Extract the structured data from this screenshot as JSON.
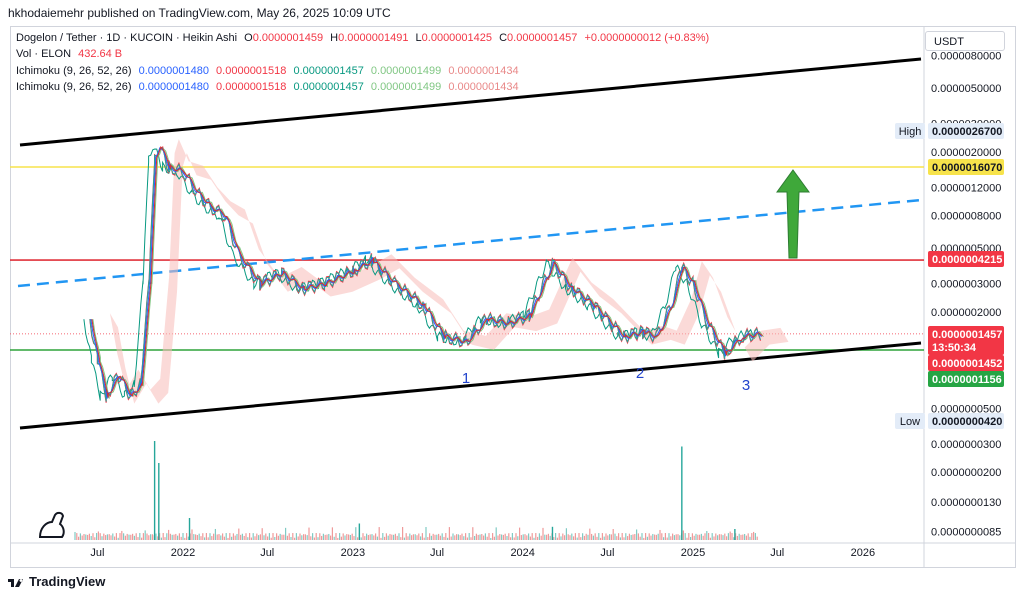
{
  "header": {
    "publisher_line": "hkhodaiemehr published on TradingView.com, May 26, 2025 10:09 UTC"
  },
  "legend": {
    "symbol": "Dogelon / Tether · 1D · KUCOIN · Heikin Ashi",
    "ohlc": {
      "o_label": "O",
      "o": "0.0000001459",
      "h_label": "H",
      "h": "0.0000001491",
      "l_label": "L",
      "l": "0.0000001425",
      "c_label": "C",
      "c": "0.0000001457",
      "change": "+0.0000000012 (+0.83%)"
    },
    "volume": {
      "label": "Vol · ELON",
      "value": "432.64 B"
    },
    "ichimoku": [
      {
        "label": "Ichimoku (9, 26, 52, 26)",
        "v1": "0.0000001480",
        "v2": "0.0000001518",
        "v3": "0.0000001457",
        "v4": "0.0000001499",
        "v5": "0.0000001434"
      },
      {
        "label": "Ichimoku (9, 26, 52, 26)",
        "v1": "0.0000001480",
        "v2": "0.0000001518",
        "v3": "0.0000001457",
        "v4": "0.0000001499",
        "v5": "0.0000001434"
      }
    ],
    "colors": {
      "tenkan": "#2962ff",
      "kijun": "#f23645",
      "chikou": "#089981",
      "span_a": "#81c784",
      "span_b": "#e57373"
    }
  },
  "currency_button": "USDT",
  "footer": {
    "brand": "TradingView"
  },
  "chart_data": {
    "type": "line",
    "scale": "log",
    "series_style": "heikin-ashi candles with ichimoku cloud",
    "title": "Dogelon / Tether · 1D · KUCOIN",
    "x_ticks": [
      "Jul",
      "2022",
      "Jul",
      "2023",
      "Jul",
      "2024",
      "Jul",
      "2025",
      "Jul",
      "2026"
    ],
    "y_ticks": [
      "0.0000080000",
      "0.0000050000",
      "0.0000030000",
      "0.0000020000",
      "0.0000012000",
      "0.0000008000",
      "0.0000005000",
      "0.0000003000",
      "0.0000002000",
      "0.0000000500",
      "0.0000000300",
      "0.0000000200",
      "0.0000000130",
      "0.0000000085"
    ],
    "price_tags": [
      {
        "label": "High",
        "value": "0.0000026700",
        "bg": "#e3ecf8",
        "fg": "#131722"
      },
      {
        "label": "",
        "value": "0.0000016070",
        "bg": "#f7e34b",
        "fg": "#131722"
      },
      {
        "label": "",
        "value": "0.0000004215",
        "bg": "#f23645",
        "fg": "#ffffff"
      },
      {
        "label": "",
        "value": "0.0000001457",
        "bg": "#f23645",
        "fg": "#ffffff"
      },
      {
        "label": "",
        "value": "13:50:34",
        "bg": "#f23645",
        "fg": "#ffffff"
      },
      {
        "label": "",
        "value": "0.0000001452",
        "bg": "#f23645",
        "fg": "#ffffff"
      },
      {
        "label": "",
        "value": "0.0000001156",
        "bg": "#26a544",
        "fg": "#ffffff"
      },
      {
        "label": "Low",
        "value": "0.0000000420",
        "bg": "#e3ecf8",
        "fg": "#131722"
      }
    ],
    "horizontal_levels": [
      {
        "value": 1.607e-06,
        "color": "#f7e34b"
      },
      {
        "value": 4.215e-07,
        "color": "#e0323c"
      },
      {
        "value": 1.156e-07,
        "color": "#2ea43a"
      }
    ],
    "wave_labels": [
      "1",
      "2",
      "3"
    ],
    "price_path": [
      [
        "2021-06-15",
        1.8e-07
      ],
      [
        "2021-07-01",
        1e-07
      ],
      [
        "2021-07-20",
        6e-08
      ],
      [
        "2021-08-15",
        8e-08
      ],
      [
        "2021-09-10",
        6e-08
      ],
      [
        "2021-10-01",
        7e-08
      ],
      [
        "2021-10-20",
        3e-07
      ],
      [
        "2021-11-01",
        1.8e-06
      ],
      [
        "2021-11-10",
        2.2e-06
      ],
      [
        "2021-12-01",
        1.6e-06
      ],
      [
        "2022-01-01",
        1.5e-06
      ],
      [
        "2022-02-01",
        1.1e-06
      ],
      [
        "2022-03-01",
        9e-07
      ],
      [
        "2022-04-01",
        8e-07
      ],
      [
        "2022-05-01",
        4.5e-07
      ],
      [
        "2022-06-15",
        3e-07
      ],
      [
        "2022-08-01",
        3.5e-07
      ],
      [
        "2022-09-15",
        2.8e-07
      ],
      [
        "2022-11-01",
        3e-07
      ],
      [
        "2023-01-01",
        3.6e-07
      ],
      [
        "2023-02-10",
        4.2e-07
      ],
      [
        "2023-04-01",
        3e-07
      ],
      [
        "2023-06-01",
        2.2e-07
      ],
      [
        "2023-07-15",
        1.4e-07
      ],
      [
        "2023-09-01",
        1.3e-07
      ],
      [
        "2023-10-15",
        1.8e-07
      ],
      [
        "2023-12-01",
        1.7e-07
      ],
      [
        "2024-01-15",
        1.9e-07
      ],
      [
        "2024-03-05",
        4e-07
      ],
      [
        "2024-04-15",
        2.8e-07
      ],
      [
        "2024-06-01",
        2.2e-07
      ],
      [
        "2024-08-05",
        1.4e-07
      ],
      [
        "2024-09-15",
        1.5e-07
      ],
      [
        "2024-10-15",
        1.4e-07
      ],
      [
        "2024-11-15",
        2.2e-07
      ],
      [
        "2024-12-08",
        3.8e-07
      ],
      [
        "2025-01-01",
        3e-07
      ],
      [
        "2025-02-01",
        1.7e-07
      ],
      [
        "2025-03-10",
        1.1e-07
      ],
      [
        "2025-04-15",
        1.4e-07
      ],
      [
        "2025-05-26",
        1.457e-07
      ]
    ],
    "volume_spikes": [
      [
        "2021-11-01",
        0.9
      ],
      [
        "2021-11-10",
        0.7
      ],
      [
        "2022-01-15",
        0.2
      ],
      [
        "2023-01-15",
        0.15
      ],
      [
        "2024-03-05",
        0.12
      ],
      [
        "2024-12-08",
        0.85
      ],
      [
        "2025-04-01",
        0.1
      ]
    ]
  }
}
